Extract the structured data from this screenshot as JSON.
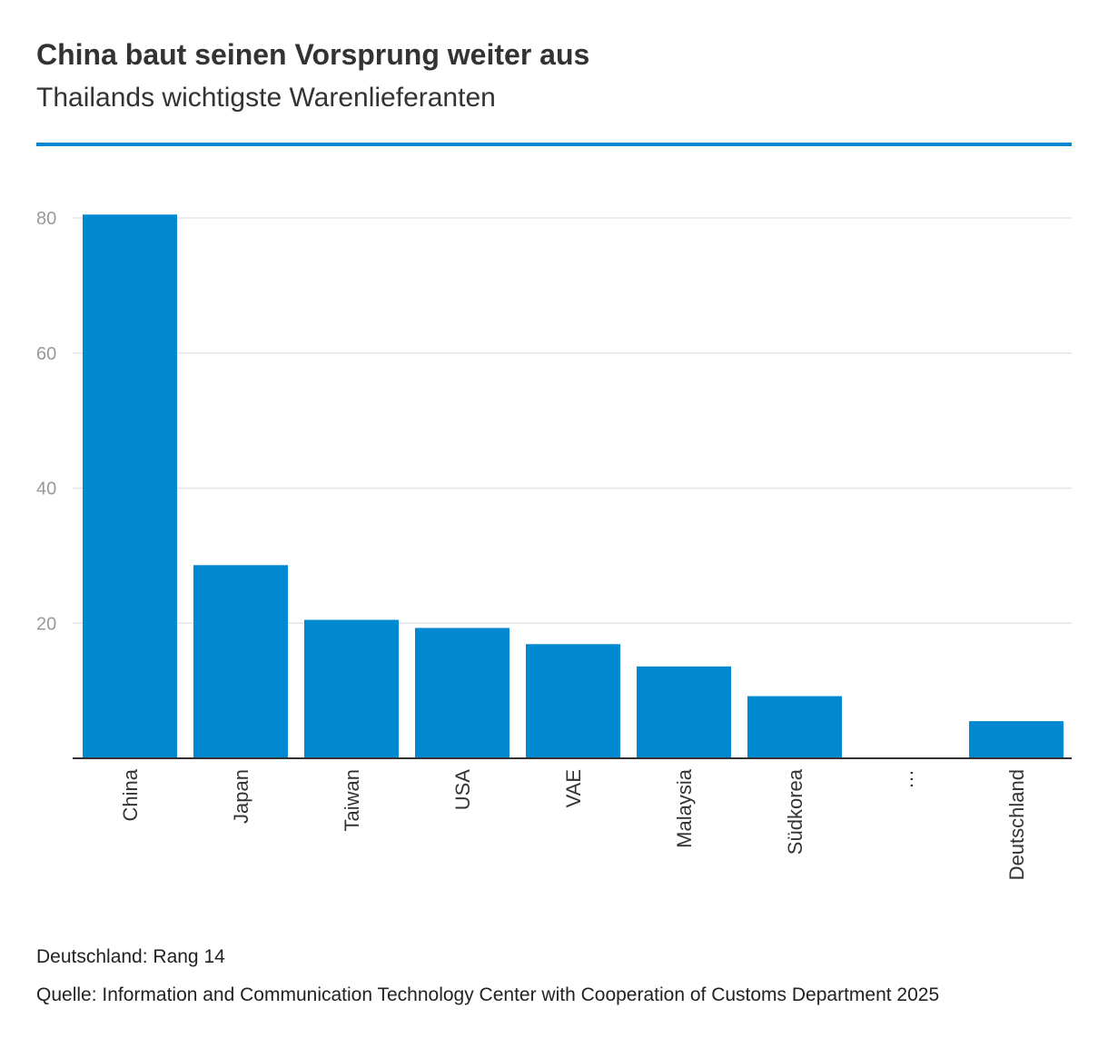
{
  "header": {
    "title": "China baut seinen Vorsprung weiter aus",
    "subtitle": "Thailands wichtigste Warenlieferanten"
  },
  "footer": {
    "note": "Deutschland: Rang 14",
    "source": "Quelle: Information and Communication Technology Center with Cooperation of Customs Department 2025"
  },
  "colors": {
    "bar": "#0088d0",
    "accent_rule": "#0088d0",
    "grid": "#e5e5e5",
    "axis": "#333333"
  },
  "chart_data": {
    "type": "bar",
    "title": "China baut seinen Vorsprung weiter aus",
    "subtitle": "Thailands wichtigste Warenlieferanten",
    "xlabel": "",
    "ylabel": "",
    "categories": [
      "China",
      "Japan",
      "Taiwan",
      "USA",
      "VAE",
      "Malaysia",
      "Südkorea",
      "…",
      "Deutschland"
    ],
    "values": [
      80.5,
      28.6,
      20.5,
      19.3,
      16.9,
      13.6,
      9.2,
      null,
      5.5
    ],
    "yticks": [
      20,
      40,
      60,
      80
    ],
    "ylim": [
      0,
      80
    ],
    "grid": true
  }
}
